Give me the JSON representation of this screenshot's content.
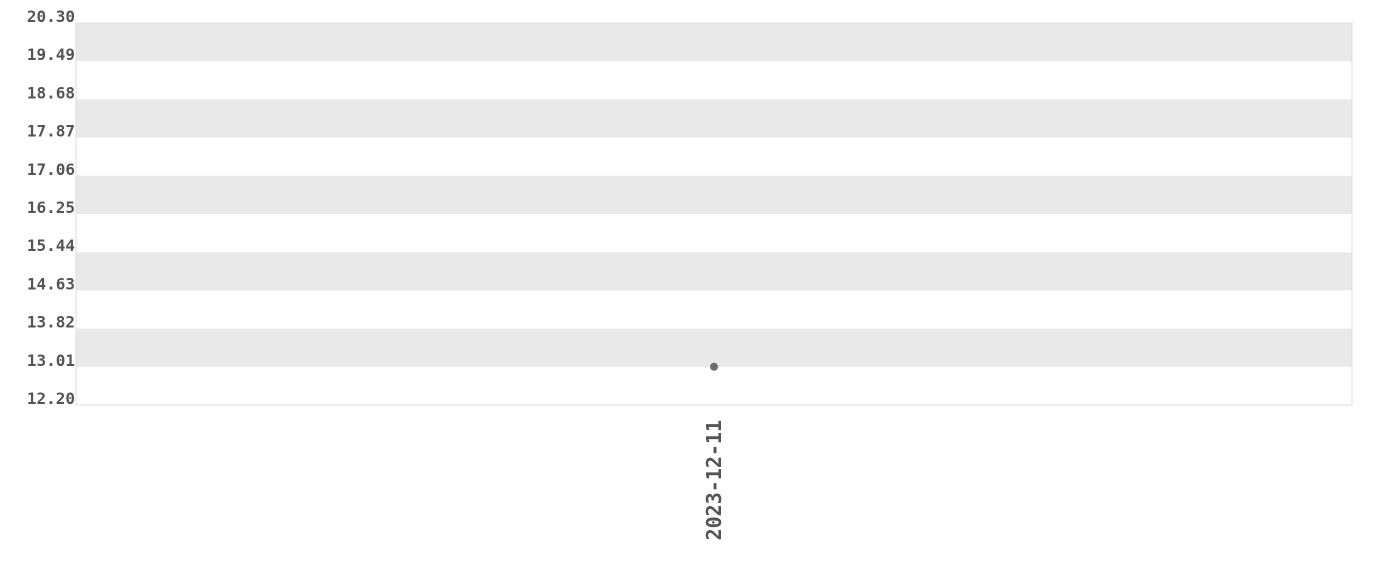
{
  "chart_data": {
    "type": "scatter",
    "title": "",
    "xlabel": "",
    "ylabel": "",
    "ylim": [
      12.2,
      20.3
    ],
    "y_ticks": [
      "20.30",
      "19.49",
      "18.68",
      "17.87",
      "17.06",
      "16.25",
      "15.44",
      "14.63",
      "13.82",
      "13.01",
      "12.20"
    ],
    "x_ticks": [
      "2023-12-11"
    ],
    "grid": "alternating horizontal bands",
    "series": [
      {
        "points": [
          {
            "x": "2023-12-11",
            "y": 13.01
          }
        ]
      }
    ],
    "colors": {
      "band": "#e9e9e9",
      "point": "#6e6e6e",
      "text": "#555555",
      "border": "#dddddd"
    }
  }
}
